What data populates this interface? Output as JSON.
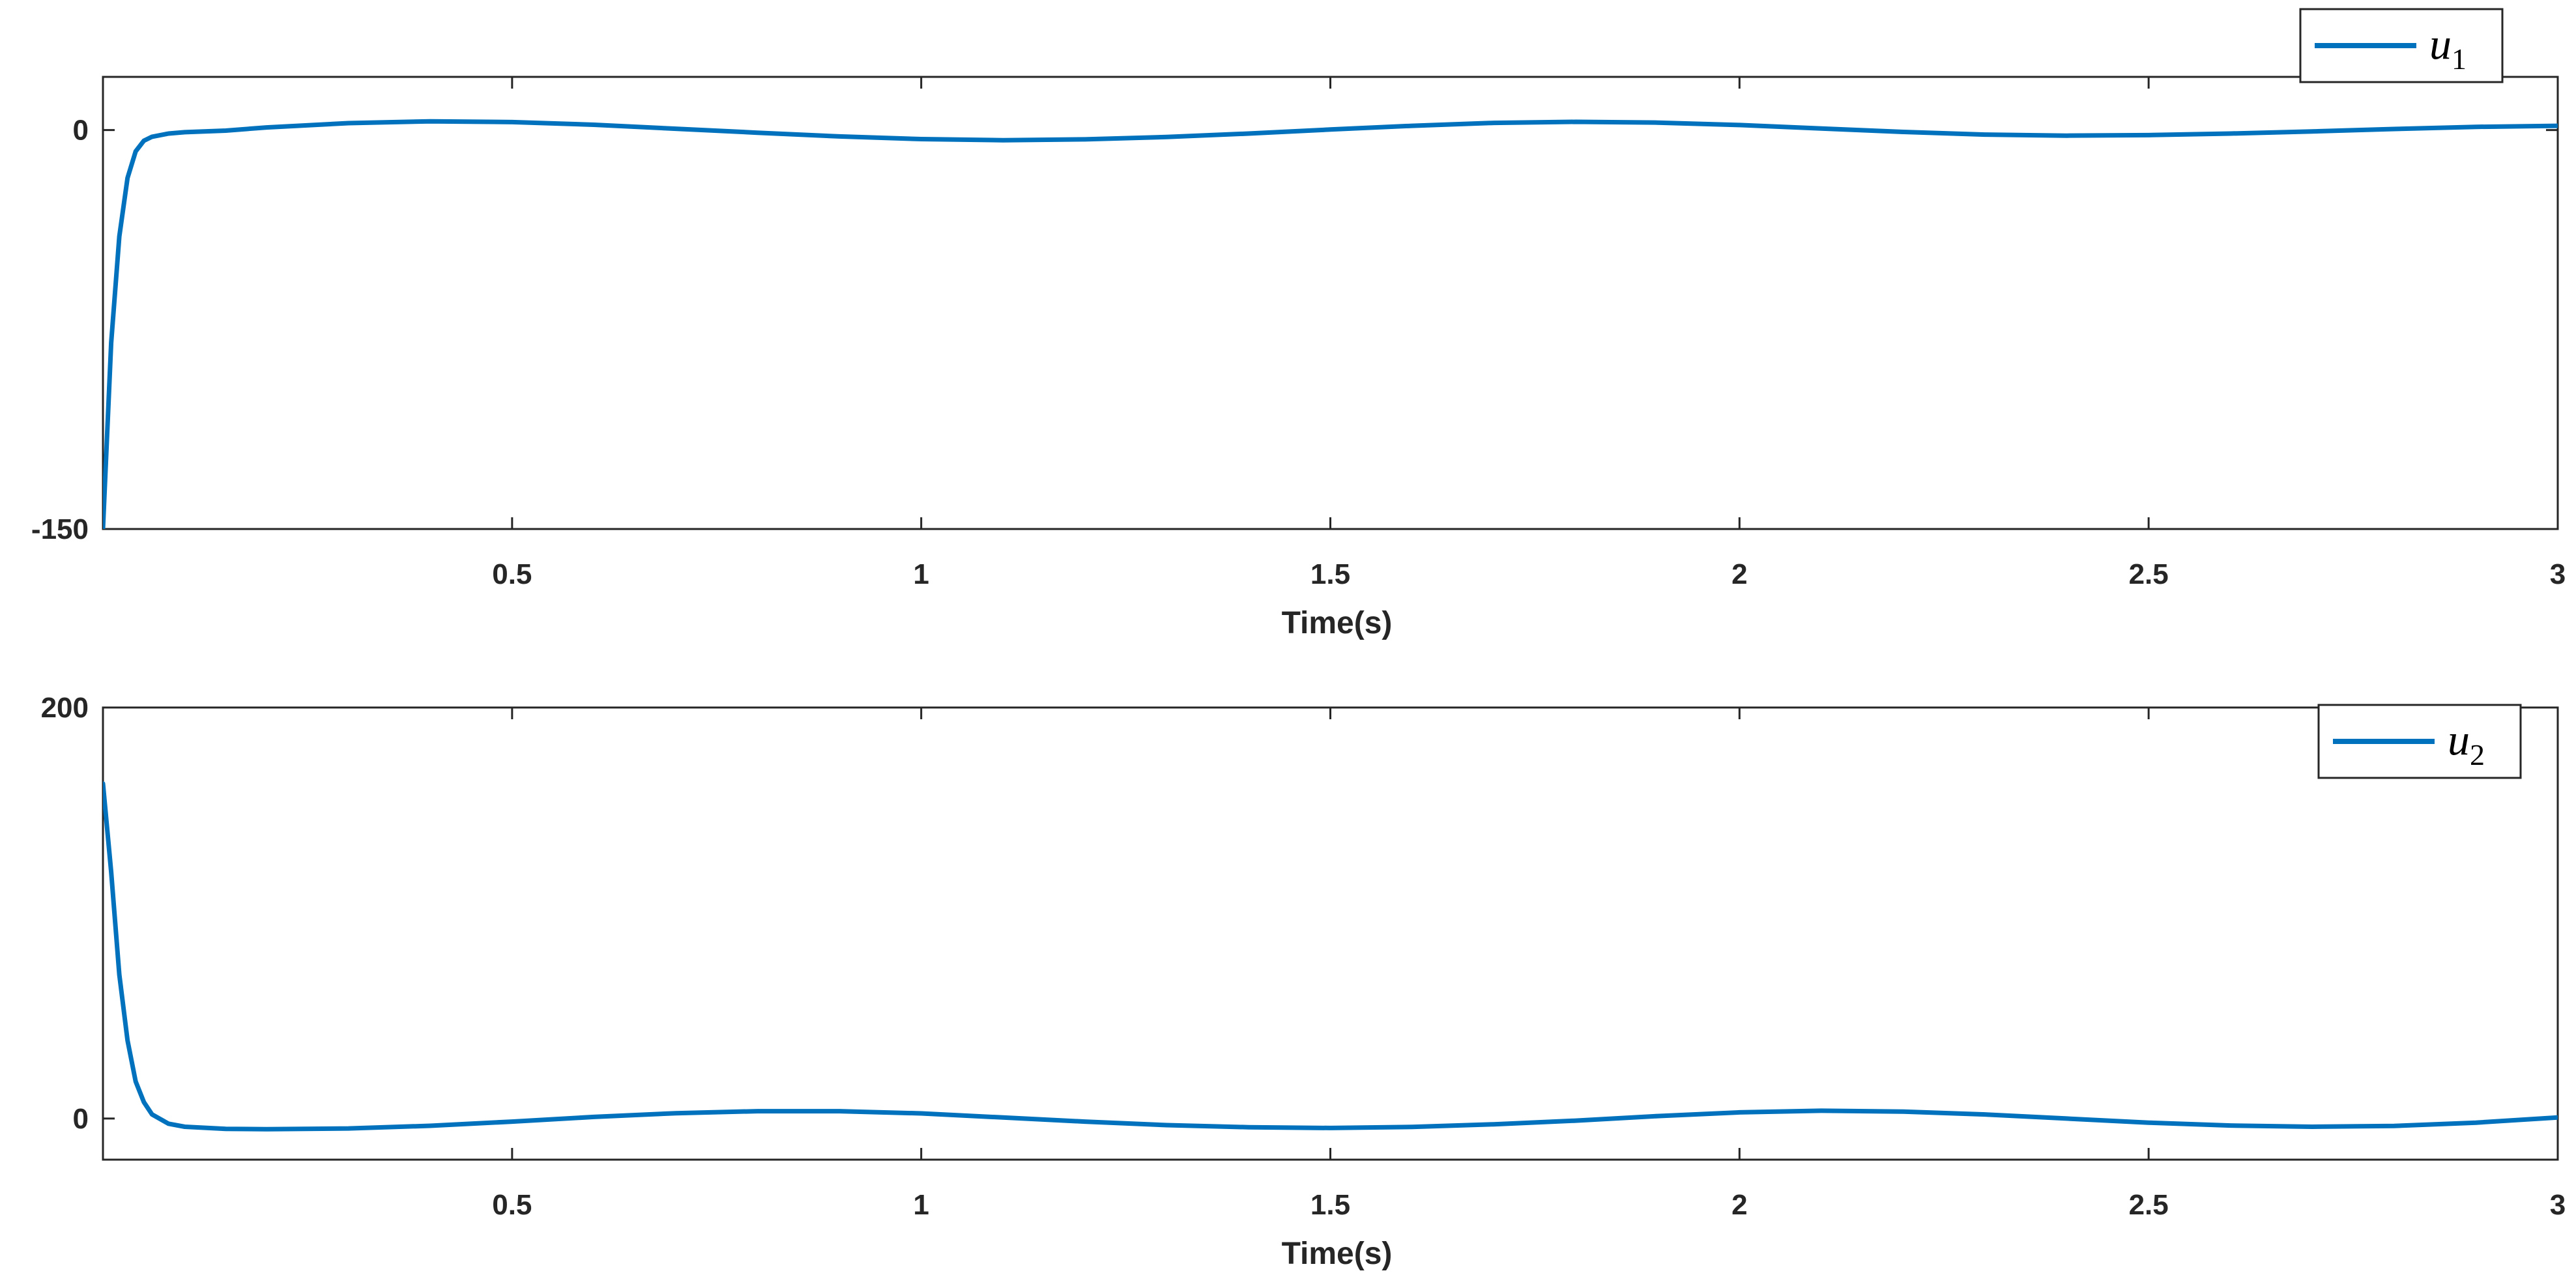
{
  "chart_data": [
    {
      "type": "line",
      "xlabel": "Time(s)",
      "ylabel": "",
      "xlim": [
        0,
        3
      ],
      "ylim": [
        -150,
        20
      ],
      "xticks": [
        0.5,
        1,
        1.5,
        2,
        2.5,
        3
      ],
      "xtick_labels": [
        "0.5",
        "1",
        "1.5",
        "2",
        "2.5",
        "3"
      ],
      "yticks": [
        -150,
        0
      ],
      "ytick_labels": [
        "-150",
        "0"
      ],
      "legend_position": "top-right",
      "color": "#0072bd",
      "grid": false,
      "series": [
        {
          "name": "u",
          "subscript": "1",
          "x": [
            0,
            0.01,
            0.02,
            0.03,
            0.04,
            0.05,
            0.06,
            0.08,
            0.1,
            0.15,
            0.2,
            0.3,
            0.4,
            0.5,
            0.6,
            0.7,
            0.8,
            0.9,
            1.0,
            1.1,
            1.2,
            1.3,
            1.4,
            1.5,
            1.6,
            1.7,
            1.8,
            1.9,
            2.0,
            2.1,
            2.2,
            2.3,
            2.4,
            2.5,
            2.6,
            2.7,
            2.8,
            2.9,
            3.0
          ],
          "y": [
            -150,
            -80,
            -40,
            -18,
            -8,
            -4,
            -2.5,
            -1.3,
            -0.8,
            -0.2,
            1.0,
            2.6,
            3.3,
            3.0,
            2.0,
            0.5,
            -1.0,
            -2.4,
            -3.4,
            -3.8,
            -3.5,
            -2.6,
            -1.3,
            0.2,
            1.6,
            2.7,
            3.1,
            2.8,
            1.9,
            0.6,
            -0.7,
            -1.7,
            -2.1,
            -1.9,
            -1.3,
            -0.5,
            0.4,
            1.2,
            1.6
          ]
        }
      ]
    },
    {
      "type": "line",
      "xlabel": "Time(s)",
      "ylabel": "",
      "xlim": [
        0,
        3
      ],
      "ylim": [
        -20,
        200
      ],
      "xticks": [
        0.5,
        1,
        1.5,
        2,
        2.5,
        3
      ],
      "xtick_labels": [
        "0.5",
        "1",
        "1.5",
        "2",
        "2.5",
        "3"
      ],
      "yticks": [
        0,
        200
      ],
      "ytick_labels": [
        "0",
        "200"
      ],
      "legend_position": "top-right",
      "color": "#0072bd",
      "grid": false,
      "series": [
        {
          "name": "u",
          "subscript": "2",
          "x": [
            0,
            0.01,
            0.02,
            0.03,
            0.04,
            0.05,
            0.06,
            0.08,
            0.1,
            0.15,
            0.2,
            0.3,
            0.4,
            0.5,
            0.6,
            0.7,
            0.8,
            0.9,
            1.0,
            1.1,
            1.2,
            1.3,
            1.4,
            1.5,
            1.6,
            1.7,
            1.8,
            1.9,
            2.0,
            2.1,
            2.2,
            2.3,
            2.4,
            2.5,
            2.6,
            2.7,
            2.8,
            2.9,
            3.0
          ],
          "y": [
            163,
            120,
            70,
            38,
            18,
            8,
            2,
            -2.5,
            -4.0,
            -5.0,
            -5.2,
            -4.8,
            -3.5,
            -1.5,
            0.8,
            2.6,
            3.6,
            3.6,
            2.5,
            0.5,
            -1.5,
            -3.2,
            -4.2,
            -4.6,
            -4.1,
            -2.8,
            -1.0,
            1.2,
            3.0,
            3.8,
            3.4,
            2.0,
            0,
            -2.0,
            -3.4,
            -4.0,
            -3.6,
            -2.0,
            0.5
          ]
        }
      ]
    }
  ]
}
